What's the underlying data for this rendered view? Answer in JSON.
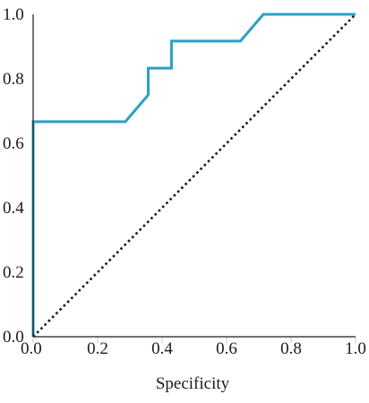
{
  "chart_data": {
    "type": "line",
    "title": "",
    "xlabel": "Specificity",
    "ylabel": "",
    "xlim": [
      0.0,
      1.0
    ],
    "ylim": [
      0.0,
      1.0
    ],
    "grid": false,
    "legend": "none",
    "x_ticks": [
      0.0,
      0.2,
      0.4,
      0.6,
      0.8,
      1.0
    ],
    "y_ticks": [
      0.0,
      0.2,
      0.4,
      0.6,
      0.8,
      1.0
    ],
    "x_tick_labels": [
      "0.0",
      "0.2",
      "0.4",
      "0.6",
      "0.8",
      "1.0"
    ],
    "y_tick_labels": [
      "0.0",
      "0.2",
      "0.4",
      "0.6",
      "0.8",
      "1.0"
    ],
    "series": [
      {
        "style": "solid",
        "color": "#2aa0c8",
        "x": [
          0.0,
          0.0,
          0.286,
          0.357,
          0.357,
          0.429,
          0.429,
          0.643,
          0.714,
          1.0
        ],
        "y": [
          0.0,
          0.667,
          0.667,
          0.75,
          0.833,
          0.833,
          0.917,
          0.917,
          1.0,
          1.0
        ]
      },
      {
        "style": "dotted",
        "color": "#1a1a1a",
        "x": [
          0.0,
          1.0
        ],
        "y": [
          0.0,
          1.0
        ]
      }
    ],
    "colors": {
      "axis": "#1a1a1a",
      "tick": "#d9d9d9"
    }
  }
}
